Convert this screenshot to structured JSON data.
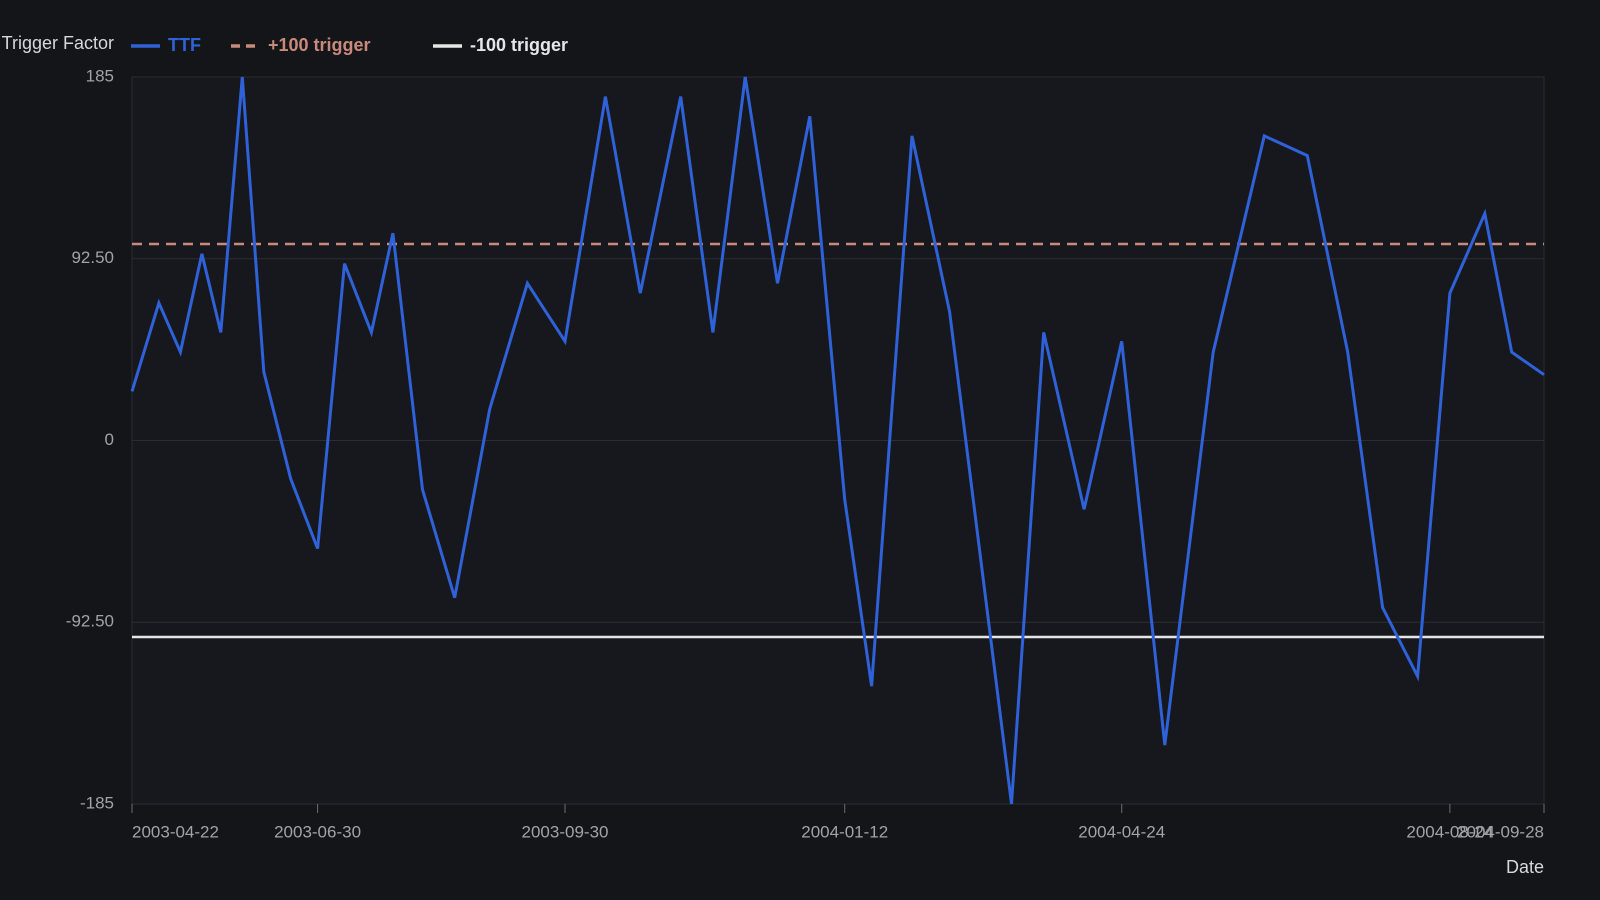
{
  "chart_data": {
    "type": "line",
    "legend_title": "Trigger Factor",
    "x_label": "Date",
    "x": [
      "2003-04-22",
      "2003-05-02",
      "2003-05-10",
      "2003-05-18",
      "2003-05-25",
      "2003-06-02",
      "2003-06-10",
      "2003-06-20",
      "2003-06-30",
      "2003-07-10",
      "2003-07-20",
      "2003-07-28",
      "2003-08-08",
      "2003-08-20",
      "2003-09-02",
      "2003-09-16",
      "2003-09-30",
      "2003-10-15",
      "2003-10-28",
      "2003-11-12",
      "2003-11-24",
      "2003-12-06",
      "2003-12-18",
      "2003-12-30",
      "2004-01-12",
      "2004-01-22",
      "2004-02-06",
      "2004-02-20",
      "2004-03-14",
      "2004-03-26",
      "2004-04-10",
      "2004-04-24",
      "2004-05-10",
      "2004-05-28",
      "2004-06-16",
      "2004-07-02",
      "2004-07-17",
      "2004-07-30",
      "2004-08-12",
      "2004-08-24",
      "2004-09-06",
      "2004-09-16",
      "2004-09-28"
    ],
    "series": [
      {
        "name": "TTF",
        "color": "#2f62d8",
        "values": [
          25,
          70,
          45,
          95,
          55,
          185,
          35,
          -19.5,
          -55,
          90,
          55,
          105.5,
          -25,
          -80,
          16,
          80,
          50.5,
          175,
          75,
          175,
          55,
          185,
          80,
          165,
          -30,
          -125,
          155,
          65.5,
          -185,
          55,
          -35,
          50.5,
          -155,
          45,
          155,
          145,
          45,
          -85,
          -120,
          75,
          115.5,
          45,
          33.5
        ]
      }
    ],
    "reference_lines": [
      {
        "name": "+100 trigger",
        "value": 100,
        "color": "#c98a7c",
        "dashed": true
      },
      {
        "name": "-100 trigger",
        "value": -100,
        "color": "#e6e6e6",
        "dashed": false
      }
    ],
    "xlim": [
      "2003-04-22",
      "2004-09-28"
    ],
    "xticks": [
      "2003-04-22",
      "2003-06-30",
      "2003-09-30",
      "2004-01-12",
      "2004-04-24",
      "2004-08-24",
      "2004-09-28"
    ],
    "ylim": [
      -185,
      185
    ],
    "yticks": [
      -185,
      {
        "value": -92.5,
        "label": "-92.50"
      },
      0,
      {
        "value": 92.5,
        "label": "92.50"
      },
      185
    ],
    "grid": true
  }
}
